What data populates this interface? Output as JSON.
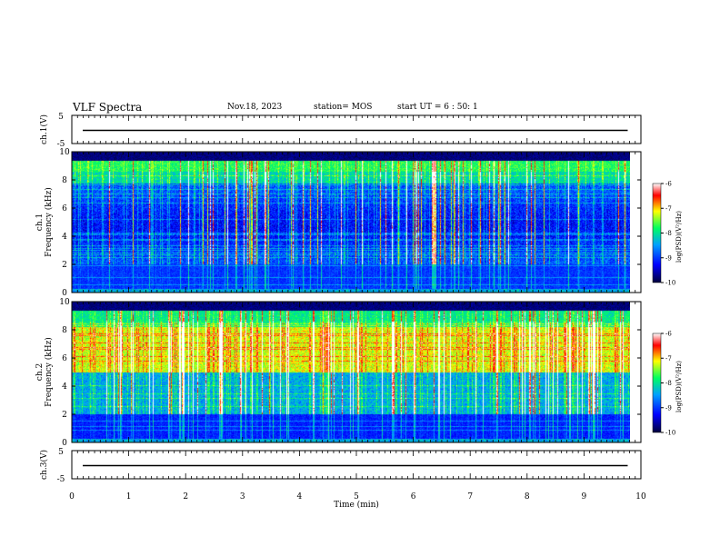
{
  "header": {
    "title": "VLF Spectra",
    "date": "Nov.18, 2023",
    "station": "station= MOS",
    "start": "start UT = 6 : 50: 1"
  },
  "chart_data": [
    {
      "type": "line",
      "panel": "ch1-waveform",
      "ylabel": "ch.1(V)",
      "ylim": [
        -5,
        5
      ],
      "yticks": [
        "5",
        "-5"
      ],
      "xlim": [
        0,
        10
      ],
      "series": [
        {
          "x": [
            0,
            9.8
          ],
          "values": [
            0,
            0
          ]
        }
      ]
    },
    {
      "type": "heatmap",
      "panel": "ch1-spectrogram",
      "ylabel": "ch.1 Frequency (kHz)",
      "ylim": [
        0,
        10
      ],
      "yticks": [
        "0",
        "2",
        "4",
        "6",
        "8",
        "10"
      ],
      "xlim": [
        0,
        9.8
      ],
      "colorbar": {
        "label": "log(PSD)(V²/Hz)",
        "range": [
          -10,
          -6
        ],
        "ticks": [
          "-6",
          "-7",
          "-8",
          "-9",
          "-10"
        ]
      }
    },
    {
      "type": "heatmap",
      "panel": "ch2-spectrogram",
      "ylabel": "ch.2 Frequency (kHz)",
      "ylim": [
        0,
        10
      ],
      "yticks": [
        "0",
        "2",
        "4",
        "6",
        "8",
        "10"
      ],
      "xlim": [
        0,
        9.8
      ],
      "colorbar": {
        "label": "log(PSD)(V²/Hz)",
        "range": [
          -10,
          -6
        ],
        "ticks": [
          "-6",
          "-7",
          "-8",
          "-9",
          "-10"
        ]
      }
    },
    {
      "type": "line",
      "panel": "ch3-waveform",
      "ylabel": "ch.3(V)",
      "ylim": [
        -5,
        5
      ],
      "yticks": [
        "5",
        "-5"
      ],
      "xlim": [
        0,
        10
      ],
      "series": [
        {
          "x": [
            0,
            9.8
          ],
          "values": [
            0,
            0
          ]
        }
      ]
    }
  ],
  "xaxis": {
    "label": "Time (min)",
    "ticks": [
      "0",
      "1",
      "2",
      "3",
      "4",
      "5",
      "6",
      "7",
      "8",
      "9",
      "10"
    ]
  },
  "colors": {
    "colormap": [
      "#00003c",
      "#0000ff",
      "#00a0ff",
      "#00ff60",
      "#ffff00",
      "#ff0000",
      "#ffffff"
    ]
  }
}
